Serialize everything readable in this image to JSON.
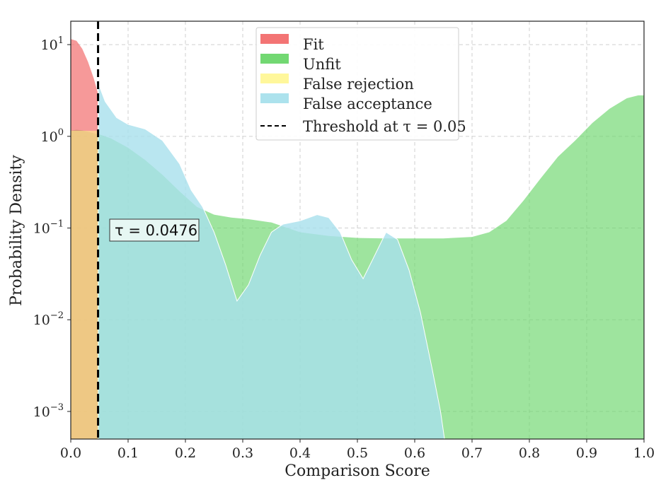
{
  "chart_data": {
    "type": "area",
    "xlabel": "Comparison Score",
    "ylabel": "Probability Density",
    "xlim": [
      0.0,
      1.0
    ],
    "ylim": [
      0.0005,
      18
    ],
    "yscale": "log",
    "grid": true,
    "legend_position": "top-center",
    "x_ticks": [
      "0.0",
      "0.1",
      "0.2",
      "0.3",
      "0.4",
      "0.5",
      "0.6",
      "0.7",
      "0.8",
      "0.9",
      "1.0"
    ],
    "y_ticks": [
      {
        "value": 10,
        "base": "10",
        "exp": "1"
      },
      {
        "value": 1,
        "base": "10",
        "exp": "0"
      },
      {
        "value": 0.1,
        "base": "10",
        "exp": "−1"
      },
      {
        "value": 0.01,
        "base": "10",
        "exp": "−2"
      },
      {
        "value": 0.001,
        "base": "10",
        "exp": "−3"
      }
    ],
    "series": [
      {
        "name": "Unfit",
        "color": "#6ad66a",
        "x": [
          0.0,
          0.01,
          0.02,
          0.03,
          0.04,
          0.05,
          0.07,
          0.1,
          0.13,
          0.16,
          0.19,
          0.22,
          0.25,
          0.28,
          0.31,
          0.35,
          0.4,
          0.45,
          0.5,
          0.55,
          0.6,
          0.65,
          0.7,
          0.73,
          0.76,
          0.79,
          0.82,
          0.85,
          0.88,
          0.91,
          0.94,
          0.97,
          0.99,
          1.0
        ],
        "y": [
          1.15,
          1.18,
          1.16,
          1.12,
          1.08,
          1.05,
          0.95,
          0.75,
          0.55,
          0.38,
          0.25,
          0.17,
          0.14,
          0.13,
          0.125,
          0.115,
          0.09,
          0.082,
          0.078,
          0.077,
          0.077,
          0.077,
          0.08,
          0.09,
          0.12,
          0.2,
          0.35,
          0.6,
          0.9,
          1.4,
          2.0,
          2.6,
          2.8,
          2.8
        ]
      },
      {
        "name": "False acceptance",
        "color": "#a8e0ec",
        "x": [
          0.048,
          0.05,
          0.06,
          0.08,
          0.1,
          0.13,
          0.16,
          0.19,
          0.21,
          0.23,
          0.25,
          0.27,
          0.29,
          0.31,
          0.33,
          0.35,
          0.37,
          0.4,
          0.43,
          0.45,
          0.47,
          0.49,
          0.51,
          0.53,
          0.55,
          0.57,
          0.59,
          0.61,
          0.63,
          0.645,
          0.652,
          0.652
        ],
        "y": [
          3.6,
          3.5,
          2.4,
          1.6,
          1.35,
          1.2,
          0.9,
          0.5,
          0.26,
          0.17,
          0.09,
          0.04,
          0.016,
          0.024,
          0.05,
          0.09,
          0.11,
          0.12,
          0.14,
          0.13,
          0.09,
          0.045,
          0.028,
          0.05,
          0.09,
          0.075,
          0.035,
          0.012,
          0.003,
          0.001,
          0.0005,
          0.0005
        ]
      },
      {
        "name": "Fit",
        "color": "#f26d6d",
        "x": [
          0.0,
          0.01,
          0.02,
          0.03,
          0.04,
          0.047
        ],
        "y": [
          11.5,
          11.0,
          9.0,
          6.5,
          4.3,
          3.0
        ]
      },
      {
        "name": "False rejection",
        "color": "#fff68a",
        "x": [
          0.0,
          0.047
        ],
        "y": [
          1.15,
          1.15
        ]
      }
    ],
    "threshold": {
      "value": 0.0476,
      "legend": "Threshold at τ = 0.05",
      "annotation": "τ = 0.0476"
    }
  }
}
